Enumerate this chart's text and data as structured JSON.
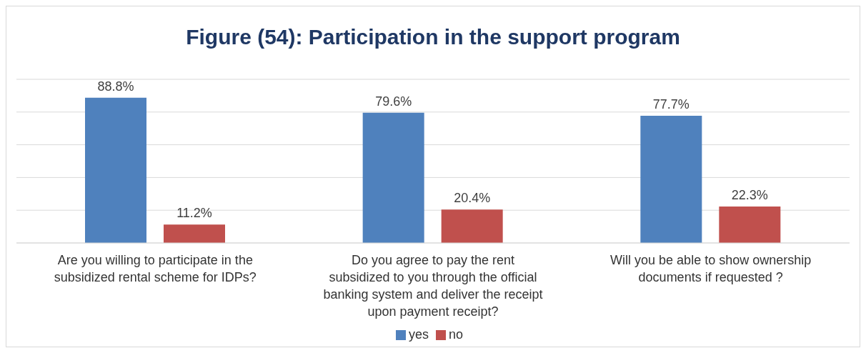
{
  "chart_data": {
    "type": "bar",
    "title": "Figure (54): Participation in the support program",
    "categories": [
      "Are you willing to participate in the subsidized rental scheme for IDPs?",
      "Do you agree to pay the rent subsidized to you through the official banking system and deliver the receipt upon payment receipt?",
      "Will you be able to show ownership documents if requested ?"
    ],
    "series": [
      {
        "name": "yes",
        "color": "#4f81bd",
        "values": [
          88.8,
          79.6,
          77.7
        ],
        "value_labels": [
          "88.8%",
          "79.6%",
          "77.7%"
        ]
      },
      {
        "name": "no",
        "color": "#c0504d",
        "values": [
          11.2,
          20.4,
          22.3
        ],
        "value_labels": [
          "11.2%",
          "20.4%",
          "22.3%"
        ]
      }
    ],
    "tick_labels": "x",
    "grid": "y",
    "legend": "bottom"
  }
}
